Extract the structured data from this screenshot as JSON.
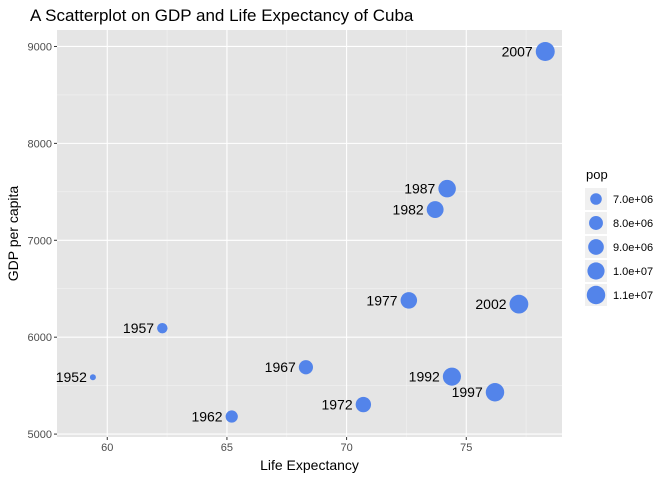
{
  "colors": {
    "panel": "#e5e5e5",
    "grid_major": "#ffffff",
    "point": "#5384ea",
    "legend_key_bg": "#f0f0f0"
  },
  "chart_data": {
    "type": "scatter",
    "title": "A Scatterplot on GDP and Life Expectancy of Cuba",
    "xlabel": "Life Expectancy",
    "ylabel": "GDP per capita",
    "xlim": [
      57.9,
      79.0
    ],
    "ylim": [
      4970,
      9170
    ],
    "xticks": [
      60,
      65,
      70,
      75
    ],
    "yticks": [
      5000,
      6000,
      7000,
      8000,
      9000
    ],
    "grid": true,
    "points": [
      {
        "label": "1952",
        "x": 59.4,
        "y": 5587,
        "pop": 6000000
      },
      {
        "label": "1957",
        "x": 62.3,
        "y": 6093,
        "pop": 6640000
      },
      {
        "label": "1962",
        "x": 65.2,
        "y": 5181,
        "pop": 7250000
      },
      {
        "label": "1967",
        "x": 68.3,
        "y": 5690,
        "pop": 8140000
      },
      {
        "label": "1972",
        "x": 70.7,
        "y": 5305,
        "pop": 8830000
      },
      {
        "label": "1977",
        "x": 72.6,
        "y": 6380,
        "pop": 9540000
      },
      {
        "label": "1982",
        "x": 73.7,
        "y": 7317,
        "pop": 9790000
      },
      {
        "label": "1987",
        "x": 74.2,
        "y": 7533,
        "pop": 10240000
      },
      {
        "label": "1992",
        "x": 74.4,
        "y": 5593,
        "pop": 10720000
      },
      {
        "label": "1997",
        "x": 76.2,
        "y": 5432,
        "pop": 10980000
      },
      {
        "label": "2002",
        "x": 77.2,
        "y": 6341,
        "pop": 11230000
      },
      {
        "label": "2007",
        "x": 78.3,
        "y": 8948,
        "pop": 11420000
      }
    ],
    "legend": {
      "title": "pop",
      "placement": "right",
      "entries": [
        {
          "label": "7.0e+06",
          "value": 7000000
        },
        {
          "label": "8.0e+06",
          "value": 8000000
        },
        {
          "label": "9.0e+06",
          "value": 9000000
        },
        {
          "label": "1.0e+07",
          "value": 10000000
        },
        {
          "label": "1.1e+07",
          "value": 11000000
        }
      ]
    }
  }
}
